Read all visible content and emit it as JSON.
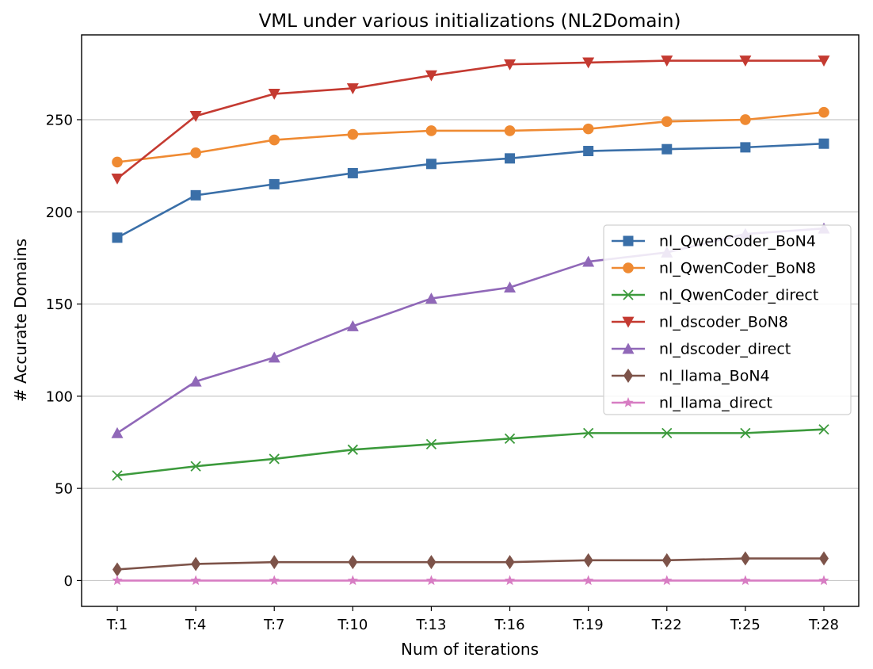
{
  "chart_data": {
    "type": "line",
    "title": "VML under various initializations (NL2Domain)",
    "xlabel": "Num of iterations",
    "ylabel": "# Accurate Domains",
    "categories": [
      "T:1",
      "T:4",
      "T:7",
      "T:10",
      "T:13",
      "T:16",
      "T:19",
      "T:22",
      "T:25",
      "T:28"
    ],
    "ylim": [
      -14,
      296
    ],
    "yticks": [
      0,
      50,
      100,
      150,
      200,
      250
    ],
    "grid": "horizontal",
    "legend_position": "center-right",
    "series": [
      {
        "name": "nl_QwenCoder_BoN4",
        "color": "#3a6fa8",
        "marker": "square",
        "values": [
          186,
          209,
          215,
          221,
          226,
          229,
          233,
          234,
          235,
          237
        ]
      },
      {
        "name": "nl_QwenCoder_BoN8",
        "color": "#ef8a32",
        "marker": "circle",
        "values": [
          227,
          232,
          239,
          242,
          244,
          244,
          245,
          249,
          250,
          254
        ]
      },
      {
        "name": "nl_QwenCoder_direct",
        "color": "#3c9a3c",
        "marker": "x",
        "values": [
          57,
          62,
          66,
          71,
          74,
          77,
          80,
          80,
          80,
          82
        ]
      },
      {
        "name": "nl_dscoder_BoN8",
        "color": "#c43a31",
        "marker": "triangle-down",
        "values": [
          218,
          252,
          264,
          267,
          274,
          280,
          281,
          282,
          282,
          282
        ]
      },
      {
        "name": "nl_dscoder_direct",
        "color": "#9068b8",
        "marker": "triangle-up",
        "values": [
          80,
          108,
          121,
          138,
          153,
          159,
          173,
          178,
          188,
          191
        ]
      },
      {
        "name": "nl_llama_BoN4",
        "color": "#7d5349",
        "marker": "diamond",
        "values": [
          6,
          9,
          10,
          10,
          10,
          10,
          11,
          11,
          12,
          12
        ]
      },
      {
        "name": "nl_llama_direct",
        "color": "#d77dc3",
        "marker": "star",
        "values": [
          0,
          0,
          0,
          0,
          0,
          0,
          0,
          0,
          0,
          0
        ]
      }
    ]
  }
}
